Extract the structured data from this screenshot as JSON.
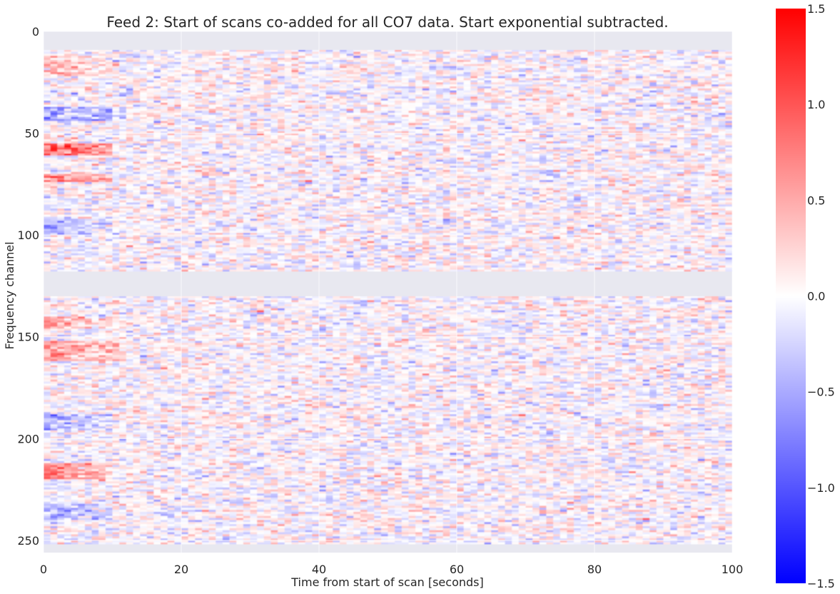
{
  "chart_data": {
    "type": "heatmap",
    "title": "Feed 2: Start of scans co-added for all CO7 data. Start exponential subtracted.",
    "xlabel": "Time from start of scan [seconds]",
    "ylabel": "Frequency channel",
    "xlim": [
      0,
      100
    ],
    "ylim": [
      0,
      256
    ],
    "y_inverted": true,
    "xticks": [
      {
        "value": 0,
        "label": "0"
      },
      {
        "value": 20,
        "label": "20"
      },
      {
        "value": 40,
        "label": "40"
      },
      {
        "value": 60,
        "label": "60"
      },
      {
        "value": 80,
        "label": "80"
      },
      {
        "value": 100,
        "label": "100"
      }
    ],
    "yticks": [
      {
        "value": 0,
        "label": "0"
      },
      {
        "value": 50,
        "label": "50"
      },
      {
        "value": 100,
        "label": "100"
      },
      {
        "value": 150,
        "label": "150"
      },
      {
        "value": 200,
        "label": "200"
      },
      {
        "value": 250,
        "label": "250"
      }
    ],
    "grid": true,
    "colorbar": {
      "colormap": "bwr",
      "vmin": -1.5,
      "vmax": 1.5,
      "ticks": [
        {
          "value": 1.5,
          "label": "1.5"
        },
        {
          "value": 1.0,
          "label": "1.0"
        },
        {
          "value": 0.5,
          "label": "0.5"
        },
        {
          "value": 0.0,
          "label": "0.0"
        },
        {
          "value": -0.5,
          "label": "−0.5"
        },
        {
          "value": -1.0,
          "label": "−1.0"
        },
        {
          "value": -1.5,
          "label": "−1.5"
        }
      ]
    },
    "masked_channel_ranges": [
      [
        0,
        9
      ],
      [
        118,
        130
      ],
      [
        252,
        256
      ]
    ],
    "noise_sigma": 0.22,
    "features": [
      {
        "channels": [
          12,
          22
        ],
        "x_end": 10,
        "value": 0.4
      },
      {
        "channels": [
          37,
          44
        ],
        "x_end": 12,
        "value": -0.6
      },
      {
        "channels": [
          55,
          61
        ],
        "x_end": 10,
        "value": 1.1
      },
      {
        "channels": [
          70,
          74
        ],
        "x_end": 10,
        "value": 0.7
      },
      {
        "channels": [
          92,
          100
        ],
        "x_end": 10,
        "value": -0.4
      },
      {
        "channels": [
          140,
          146
        ],
        "x_end": 10,
        "value": 0.45
      },
      {
        "channels": [
          152,
          162
        ],
        "x_end": 12,
        "value": 0.6
      },
      {
        "channels": [
          188,
          196
        ],
        "x_end": 10,
        "value": -0.5
      },
      {
        "channels": [
          212,
          220
        ],
        "x_end": 10,
        "value": 0.75
      },
      {
        "channels": [
          232,
          240
        ],
        "x_end": 10,
        "value": -0.45
      }
    ]
  }
}
